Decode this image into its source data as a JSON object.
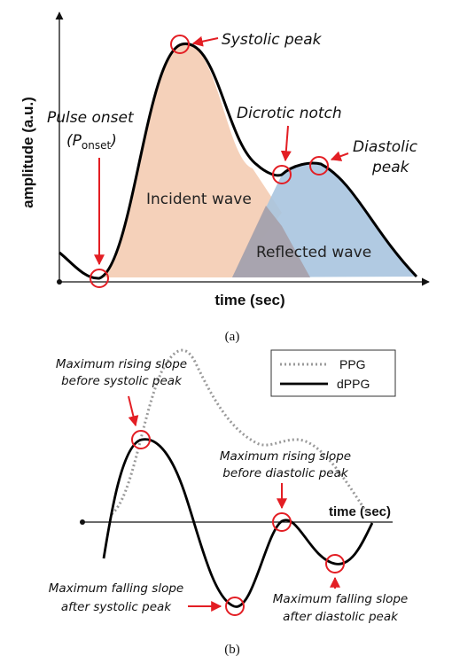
{
  "panel_a": {
    "y_axis_label": "amplitude (a.u.)",
    "x_axis_label": "time (sec)",
    "labels": {
      "systolic_peak": "Systolic peak",
      "pulse_onset": "Pulse onset",
      "p_onset_open": "(",
      "p_onset_P": "P",
      "p_onset_sub": "onset",
      "p_onset_close": ")",
      "dicrotic_notch": "Dicrotic notch",
      "diastolic_line1": "Diastolic",
      "diastolic_line2": "peak",
      "incident_wave": "Incident wave",
      "reflected_wave": "Reflected wave"
    },
    "colors": {
      "incident": "#f4cfb6",
      "reflected": "#a9c4df",
      "overlap": "#a79ea6",
      "marker": "#e31e24"
    },
    "caption": "(a)"
  },
  "panel_b": {
    "legend": {
      "ppg": "PPG",
      "dppg": "dPPG"
    },
    "x_axis_label": "time (sec)",
    "labels": {
      "max_rise_sys_1": "Maximum rising slope",
      "max_rise_sys_2": "before systolic peak",
      "max_rise_dia_1": "Maximum rising slope",
      "max_rise_dia_2": "before diastolic peak",
      "max_fall_sys_1": "Maximum falling slope",
      "max_fall_sys_2": "after systolic peak",
      "max_fall_dia_1": "Maximum falling slope",
      "max_fall_dia_2": "after diastolic peak"
    },
    "colors": {
      "ppg": "#9a9a9a",
      "dppg": "#000000",
      "marker": "#e31e24"
    },
    "caption": "(b)"
  }
}
